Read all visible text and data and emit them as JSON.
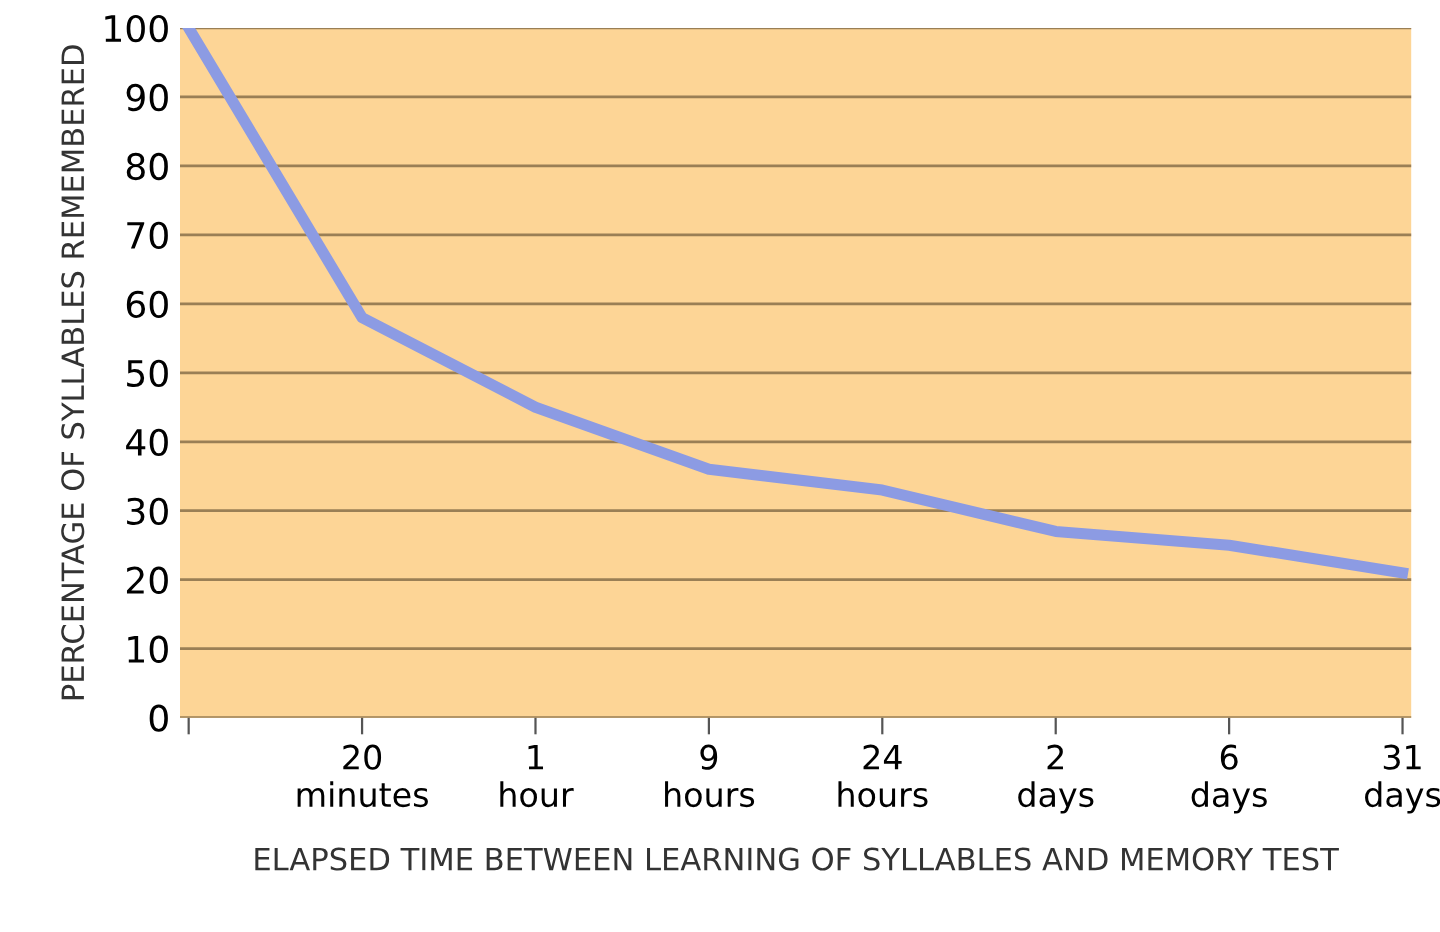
{
  "chart_data": {
    "type": "line",
    "xlabel": "ELAPSED TIME BETWEEN LEARNING OF SYLLABLES AND MEMORY TEST",
    "ylabel": "PERCENTAGE OF SYLLABLES REMEMBERED",
    "categories": [
      null,
      "20 minutes",
      "1 hour",
      "9 hours",
      "24 hours",
      "2 days",
      "6 days",
      "31 days"
    ],
    "series": [
      {
        "color": "#8c9be3",
        "values": [
          100,
          58,
          45,
          36,
          33,
          27,
          25,
          21
        ]
      }
    ],
    "ylim": [
      0,
      100
    ],
    "yticks": [
      0,
      10,
      20,
      30,
      40,
      50,
      60,
      70,
      80,
      90,
      100
    ],
    "grid": "y",
    "marker": "none",
    "line_style": "solid"
  }
}
